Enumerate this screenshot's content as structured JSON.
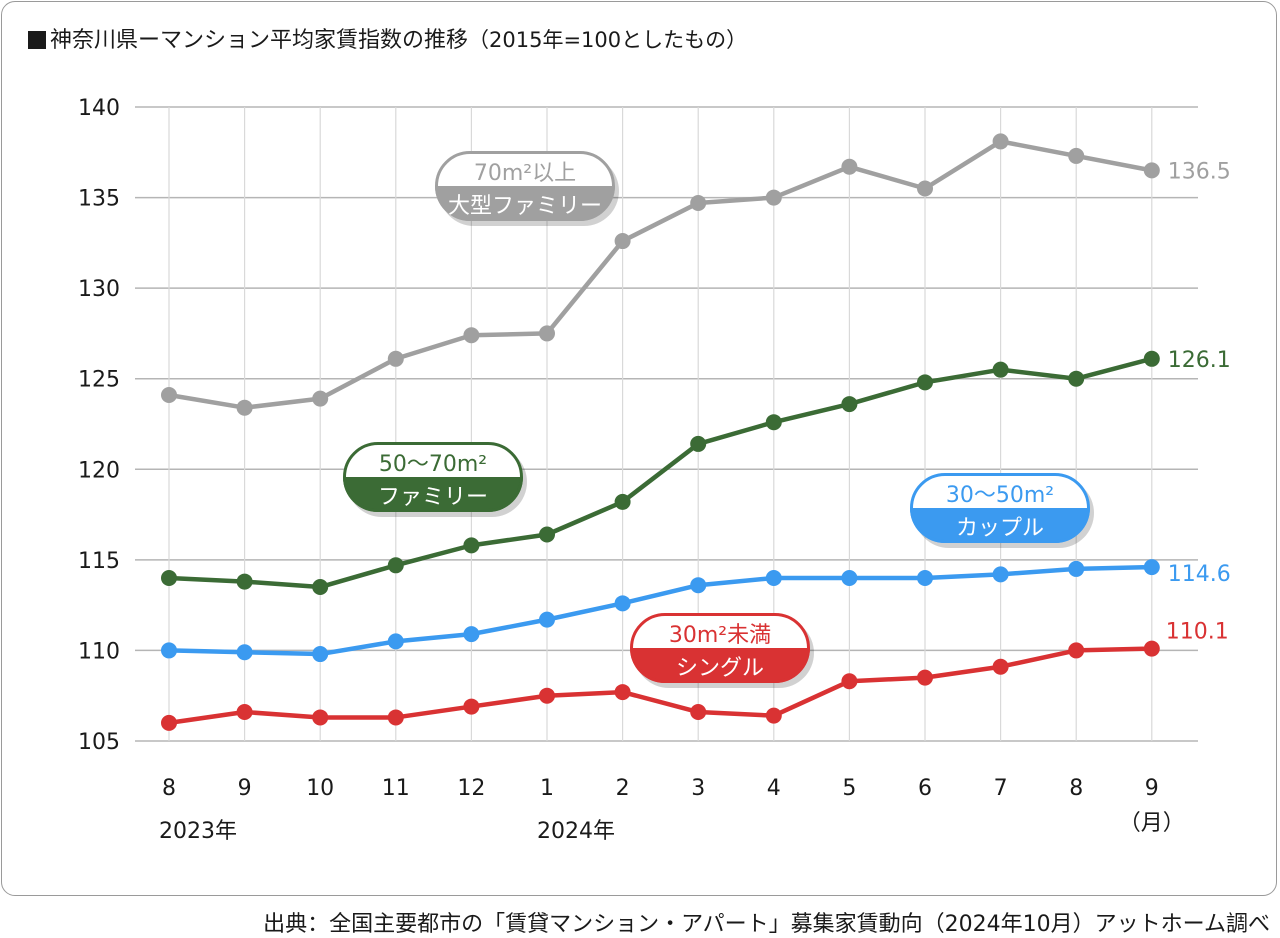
{
  "header": {
    "title_main": "神奈川県ーマンション平均家賃指数の推移",
    "title_note": "（2015年=100としたもの）"
  },
  "footer": {
    "source": "出典：全国主要都市の「賃貸マンション・アパート」募集家賃動向（2024年10月）アットホーム調べ"
  },
  "colors": {
    "large_family": "#a0a0a0",
    "family": "#3b6b35",
    "couple": "#3b9af0",
    "single": "#d93233",
    "grid": "#b5b5b5",
    "axis_text": "#1a1a1a"
  },
  "chart_data": {
    "type": "line",
    "title": "神奈川県ーマンション平均家賃指数の推移（2015年=100としたもの）",
    "categories": [
      "8",
      "9",
      "10",
      "11",
      "12",
      "1",
      "2",
      "3",
      "4",
      "5",
      "6",
      "7",
      "8",
      "9"
    ],
    "year_labels": [
      {
        "category_index": 0,
        "text": "2023年"
      },
      {
        "category_index": 5,
        "text": "2024年"
      }
    ],
    "unit_label": "（月）",
    "ylim": [
      105,
      140
    ],
    "yticks": [
      105,
      110,
      115,
      120,
      125,
      130,
      135,
      140
    ],
    "grid": true,
    "series": [
      {
        "key": "large_family",
        "name_top": "70m²以上",
        "name_bottom": "大型ファミリー",
        "values": [
          124.1,
          123.4,
          123.9,
          126.1,
          127.4,
          127.5,
          132.6,
          134.7,
          135.0,
          136.7,
          135.5,
          138.1,
          137.3,
          136.5
        ],
        "end_label": "136.5"
      },
      {
        "key": "family",
        "name_top": "50〜70m²",
        "name_bottom": "ファミリー",
        "values": [
          114.0,
          113.8,
          113.5,
          114.7,
          115.8,
          116.4,
          118.2,
          121.4,
          122.6,
          123.6,
          124.8,
          125.5,
          125.0,
          126.1
        ],
        "end_label": "126.1"
      },
      {
        "key": "couple",
        "name_top": "30〜50m²",
        "name_bottom": "カップル",
        "values": [
          110.0,
          109.9,
          109.8,
          110.5,
          110.9,
          111.7,
          112.6,
          113.6,
          114.0,
          114.0,
          114.0,
          114.2,
          114.5,
          114.6
        ],
        "end_label": "114.6"
      },
      {
        "key": "single",
        "name_top": "30m²未満",
        "name_bottom": "シングル",
        "values": [
          106.0,
          106.6,
          106.3,
          106.3,
          106.9,
          107.5,
          107.7,
          106.6,
          106.4,
          108.3,
          108.5,
          109.1,
          110.0,
          110.1
        ],
        "end_label": "110.1"
      }
    ]
  }
}
